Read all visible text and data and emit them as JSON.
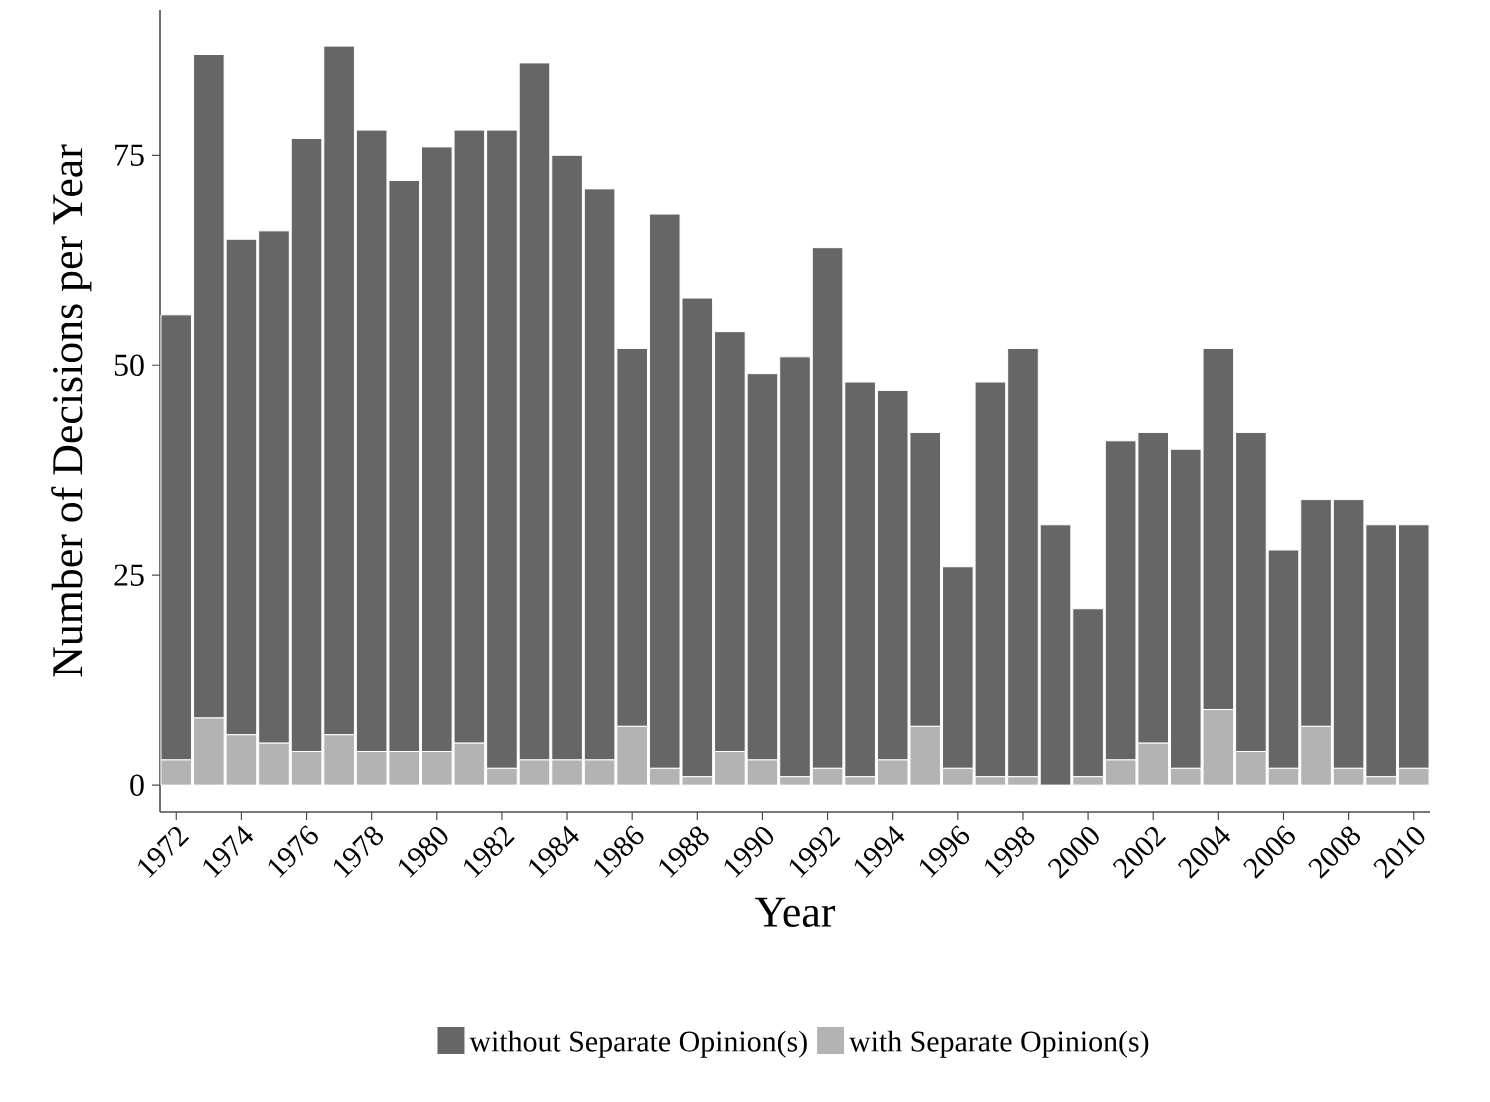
{
  "chart_data": {
    "type": "bar",
    "stacked": true,
    "xlabel": "Year",
    "ylabel": "Number of Decisions per Year",
    "categories": [
      "1972",
      null,
      "1974",
      null,
      "1976",
      null,
      "1978",
      null,
      "1980",
      null,
      "1982",
      null,
      "1984",
      null,
      "1986",
      null,
      "1988",
      null,
      "1990",
      null,
      "1992",
      null,
      "1994",
      null,
      "1996",
      null,
      "1998",
      null,
      "2000",
      null,
      "2002",
      null,
      "2004",
      null,
      "2006",
      null,
      "2008",
      null,
      "2010"
    ],
    "series": [
      {
        "name": "with Separate Opinion(s)",
        "color": "#b3b3b3",
        "values": [
          3,
          8,
          6,
          5,
          4,
          6,
          4,
          4,
          4,
          5,
          2,
          3,
          3,
          3,
          7,
          2,
          1,
          4,
          3,
          1,
          2,
          1,
          3,
          7,
          2,
          1,
          1,
          0,
          1,
          3,
          5,
          2,
          9,
          4,
          2,
          7,
          2,
          1,
          2
        ]
      },
      {
        "name": "without Separate Opinion(s)",
        "color": "#666666",
        "values": [
          53,
          79,
          59,
          61,
          73,
          82,
          74,
          68,
          72,
          73,
          76,
          83,
          72,
          68,
          45,
          66,
          57,
          50,
          46,
          50,
          62,
          47,
          44,
          35,
          24,
          47,
          51,
          31,
          20,
          38,
          37,
          38,
          43,
          38,
          26,
          27,
          32,
          30,
          29
        ]
      }
    ],
    "ylim": [
      -3.2,
      92.3
    ],
    "yticks": [
      0,
      25,
      50,
      75
    ],
    "grid": false,
    "legend": "bottom"
  }
}
